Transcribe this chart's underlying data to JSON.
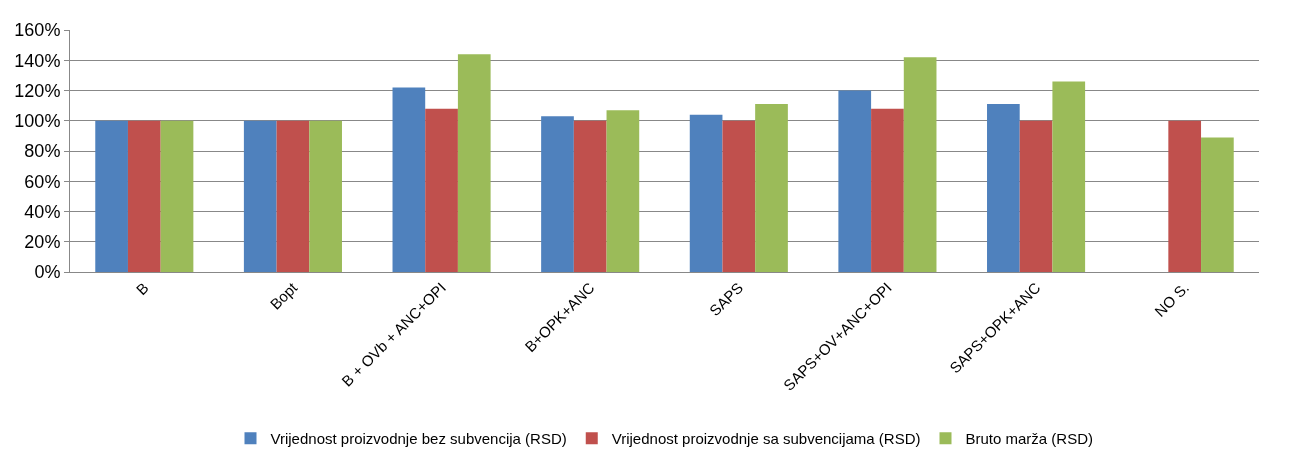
{
  "chart_data": {
    "type": "bar",
    "categories": [
      "B",
      "Bopt",
      "B + OVb + ANC+OPI",
      "B+OPK+ANC",
      "SAPS",
      "SAPS+OV+ANC+OPI",
      "SAPS+OPK+ANC",
      "NO S."
    ],
    "series": [
      {
        "name": "Vrijednost proizvodnje bez subvencija (RSD)",
        "color": "#4f81bd",
        "values": [
          100,
          100,
          122,
          103,
          104,
          120,
          111,
          null
        ]
      },
      {
        "name": "Vrijednost proizvodnje sa subvencijama (RSD)",
        "color": "#c0504d",
        "values": [
          100,
          100,
          108,
          100,
          100,
          108,
          100,
          100
        ]
      },
      {
        "name": "Bruto marža (RSD)",
        "color": "#9bbb59",
        "values": [
          100,
          100,
          144,
          107,
          111,
          142,
          126,
          89
        ]
      }
    ],
    "ylim": [
      0,
      160
    ],
    "yticks": [
      {
        "value": 0,
        "label": "0%"
      },
      {
        "value": 20,
        "label": "20%"
      },
      {
        "value": 40,
        "label": "40%"
      },
      {
        "value": 60,
        "label": "60%"
      },
      {
        "value": 80,
        "label": "80%"
      },
      {
        "value": 100,
        "label": "100%"
      },
      {
        "value": 120,
        "label": "120%"
      },
      {
        "value": 140,
        "label": "140%"
      },
      {
        "value": 160,
        "label": "160%"
      }
    ],
    "grid": "y",
    "legend": "bottom"
  }
}
